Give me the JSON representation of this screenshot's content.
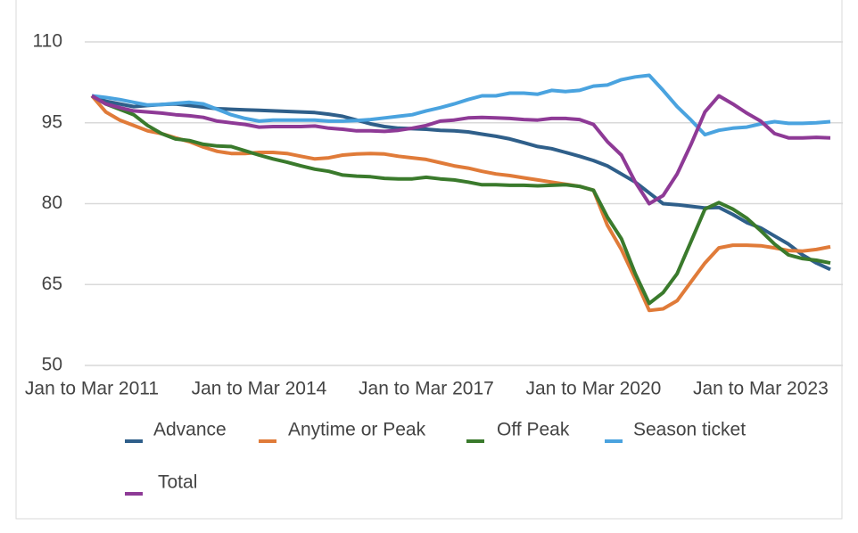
{
  "chart_data": {
    "type": "line",
    "categories": [
      "Jan to Mar 2011",
      null,
      null,
      null,
      null,
      null,
      null,
      null,
      null,
      null,
      null,
      null,
      "Jan to Mar 2014",
      null,
      null,
      null,
      null,
      null,
      null,
      null,
      null,
      null,
      null,
      null,
      "Jan to Mar 2017",
      null,
      null,
      null,
      null,
      null,
      null,
      null,
      null,
      null,
      null,
      null,
      "Jan to Mar 2020",
      null,
      null,
      null,
      null,
      null,
      null,
      null,
      null,
      null,
      null,
      null,
      "Jan to Mar 2023",
      null,
      null,
      null,
      null,
      null
    ],
    "series": [
      {
        "name": "Advance",
        "color": "#2f5f8a",
        "values": [
          100,
          99,
          98.5,
          98,
          98.2,
          98.4,
          98.5,
          98.2,
          97.9,
          97.6,
          97.5,
          97.4,
          97.3,
          97.2,
          97.1,
          97,
          96.9,
          96.6,
          96.2,
          95.5,
          94.8,
          94.3,
          94,
          93.9,
          93.8,
          93.6,
          93.5,
          93.3,
          92.9,
          92.5,
          92,
          91.3,
          90.6,
          90.2,
          89.5,
          88.8,
          88,
          87,
          85.5,
          84,
          82,
          80,
          79.8,
          79.5,
          79.2,
          79.3,
          78,
          76.5,
          75.5,
          74,
          72.5,
          70.5,
          69,
          67.8
        ]
      },
      {
        "name": "Anytime or Peak",
        "color": "#e07b39",
        "values": [
          100,
          97,
          95.5,
          94.5,
          93.5,
          93,
          92.2,
          91.5,
          90.5,
          89.7,
          89.3,
          89.3,
          89.5,
          89.5,
          89.3,
          88.8,
          88.3,
          88.5,
          89,
          89.2,
          89.3,
          89.2,
          88.8,
          88.5,
          88.2,
          87.6,
          87,
          86.6,
          86,
          85.5,
          85.2,
          84.8,
          84.4,
          84,
          83.6,
          83.2,
          82.5,
          76,
          71.5,
          66,
          60.2,
          60.5,
          62,
          65.5,
          69,
          71.8,
          72.3,
          72.3,
          72.2,
          71.8,
          71.3,
          71.2,
          71.5,
          72
        ]
      },
      {
        "name": "Off Peak",
        "color": "#3a7a2c",
        "values": [
          100,
          98.5,
          97.5,
          96.5,
          94.5,
          93,
          92,
          91.7,
          91,
          90.7,
          90.6,
          89.8,
          89,
          88.3,
          87.7,
          87,
          86.4,
          86,
          85.3,
          85.1,
          85,
          84.7,
          84.6,
          84.6,
          84.9,
          84.6,
          84.4,
          84,
          83.5,
          83.5,
          83.4,
          83.4,
          83.3,
          83.4,
          83.5,
          83.2,
          82.5,
          77.5,
          73.5,
          67,
          61.5,
          63.5,
          67,
          73,
          79,
          80.2,
          79,
          77.3,
          75,
          72.5,
          70.5,
          69.8,
          69.5,
          69
        ]
      },
      {
        "name": "Season ticket",
        "color": "#4aa3df",
        "values": [
          100,
          99.7,
          99.3,
          98.8,
          98.3,
          98.4,
          98.6,
          98.8,
          98.5,
          97.5,
          96.5,
          95.8,
          95.3,
          95.5,
          95.5,
          95.5,
          95.5,
          95.3,
          95.3,
          95.4,
          95.6,
          95.9,
          96.2,
          96.5,
          97.2,
          97.8,
          98.5,
          99.3,
          100,
          100,
          100.5,
          100.5,
          100.3,
          101,
          100.8,
          101,
          101.8,
          102,
          103,
          103.5,
          103.8,
          101,
          98,
          95.5,
          92.8,
          93.6,
          94,
          94.2,
          94.8,
          95.2,
          94.9,
          94.9,
          95,
          95.2
        ]
      },
      {
        "name": "Total",
        "color": "#8e3a96",
        "values": [
          100,
          98.5,
          97.8,
          97.2,
          97,
          96.8,
          96.5,
          96.3,
          96,
          95.3,
          95,
          94.7,
          94.2,
          94.3,
          94.3,
          94.3,
          94.4,
          94,
          93.8,
          93.5,
          93.5,
          93.4,
          93.6,
          94,
          94.5,
          95.3,
          95.5,
          95.9,
          96,
          95.9,
          95.8,
          95.6,
          95.5,
          95.8,
          95.8,
          95.6,
          94.7,
          91.5,
          89,
          84,
          80,
          81.5,
          85.5,
          91,
          97,
          100,
          98.5,
          96.8,
          95.3,
          93,
          92.2,
          92.2,
          92.3,
          92.2
        ]
      }
    ],
    "ylim": [
      50,
      110
    ],
    "yticks": [
      50,
      65,
      80,
      95,
      110
    ],
    "grid": true,
    "legend": "bottom"
  }
}
